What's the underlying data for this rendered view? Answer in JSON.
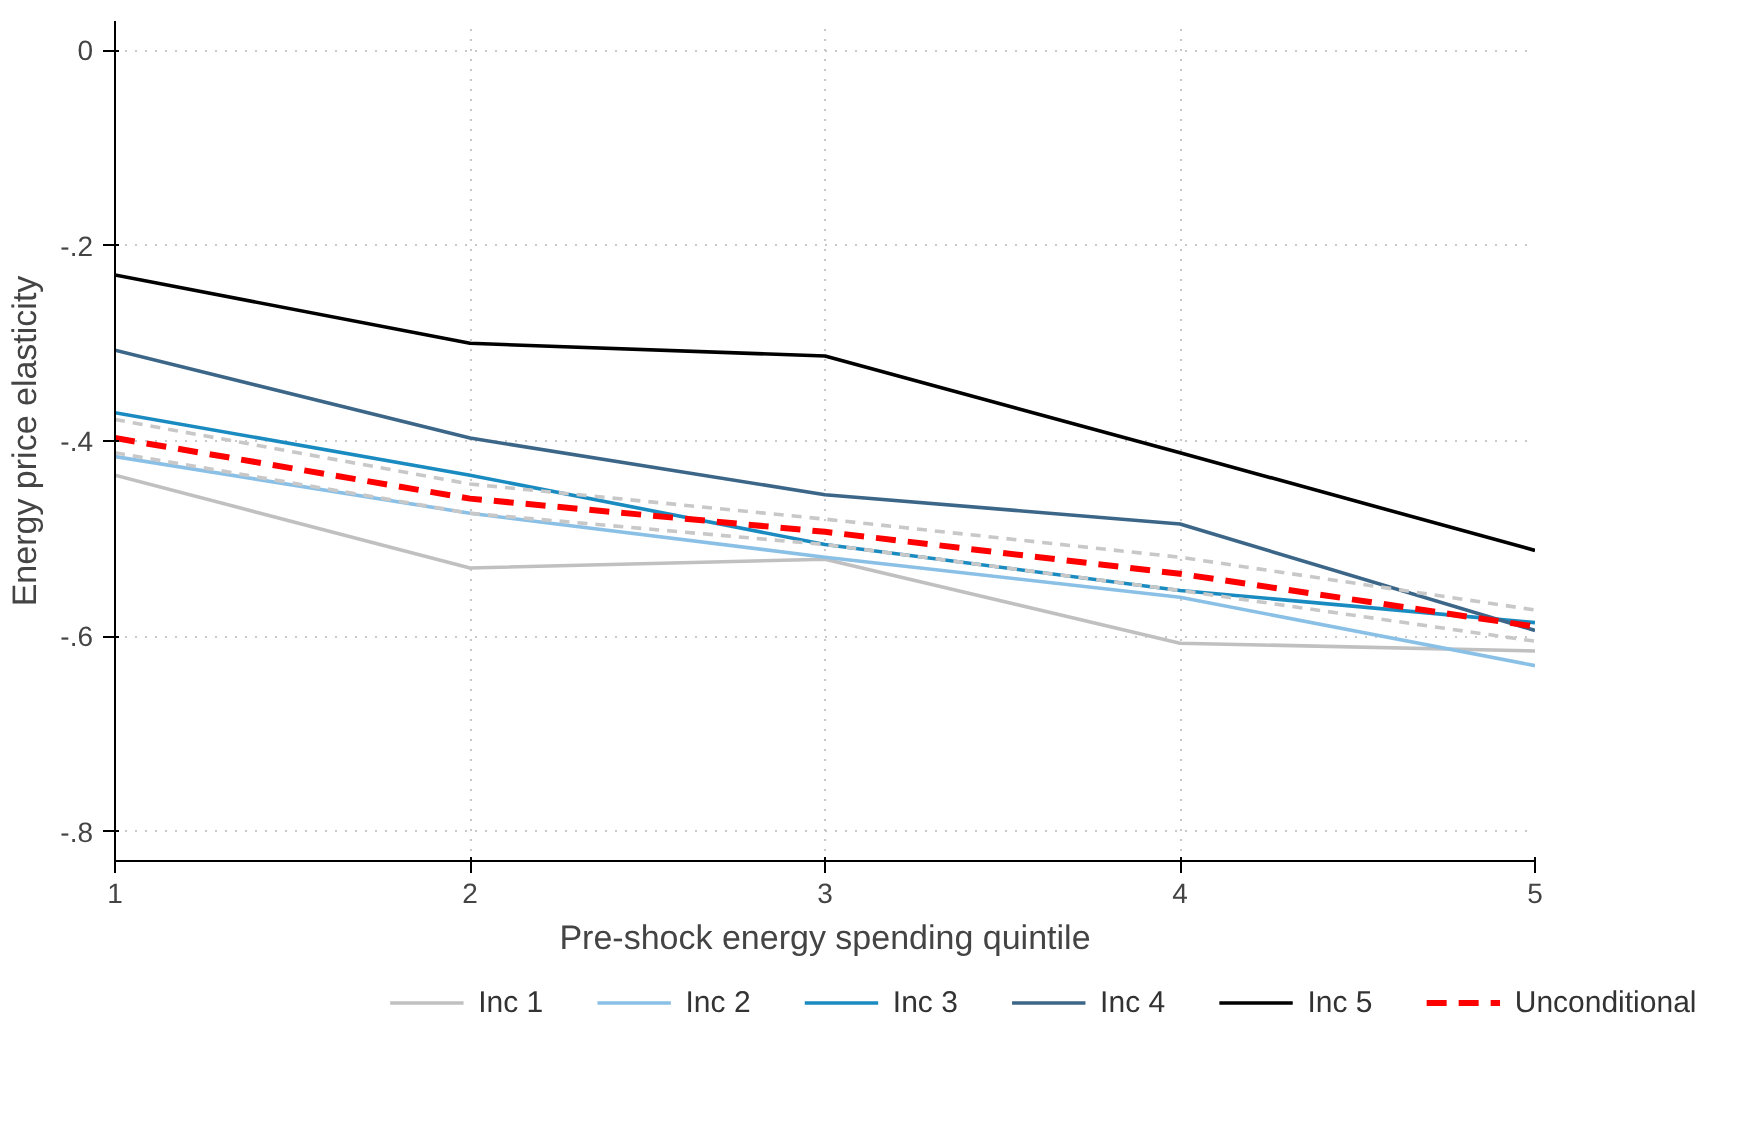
{
  "chart_data": {
    "type": "line",
    "xlabel": "Pre-shock energy spending quintile",
    "ylabel": "Energy price elasticity",
    "x": [
      1,
      2,
      3,
      4,
      5
    ],
    "series": [
      {
        "name": "Inc 1",
        "color": "#c0c0c0",
        "values": [
          -0.435,
          -0.53,
          -0.521,
          -0.607,
          -0.615
        ]
      },
      {
        "name": "Inc 2",
        "color": "#8ac0e6",
        "values": [
          -0.416,
          -0.474,
          -0.519,
          -0.56,
          -0.63
        ]
      },
      {
        "name": "Inc 3",
        "color": "#1a8bc0",
        "values": [
          -0.371,
          -0.435,
          -0.506,
          -0.553,
          -0.586
        ]
      },
      {
        "name": "Inc 4",
        "color": "#3c6688",
        "values": [
          -0.307,
          -0.397,
          -0.455,
          -0.485,
          -0.594
        ]
      },
      {
        "name": "Inc 5",
        "color": "#000000",
        "values": [
          -0.23,
          -0.3,
          -0.313,
          -0.412,
          -0.512
        ]
      },
      {
        "name": "Unconditional",
        "color": "#ff0000",
        "line_style": "dashed",
        "values": [
          -0.397,
          -0.459,
          -0.493,
          -0.536,
          -0.59
        ]
      },
      {
        "color": "#c8c8c8",
        "line_style": "dashed",
        "values": [
          -0.412,
          -0.474,
          -0.506,
          -0.553,
          -0.605
        ]
      },
      {
        "color": "#c8c8c8",
        "line_style": "dashed",
        "values": [
          -0.378,
          -0.444,
          -0.48,
          -0.519,
          -0.573
        ]
      }
    ],
    "xlim": [
      1,
      5
    ],
    "xticks": [
      1,
      2,
      3,
      4,
      5
    ],
    "ylim": [
      -0.83,
      0.03
    ],
    "yticks": [
      {
        "value": -0.8,
        "label": "-.8"
      },
      {
        "value": -0.6,
        "label": "-.6"
      },
      {
        "value": -0.4,
        "label": "-.4"
      },
      {
        "value": -0.2,
        "label": "-.2"
      },
      {
        "value": 0,
        "label": "0"
      }
    ],
    "grid": true,
    "legend": "bottom",
    "marker": "none",
    "line_style": "solid"
  }
}
